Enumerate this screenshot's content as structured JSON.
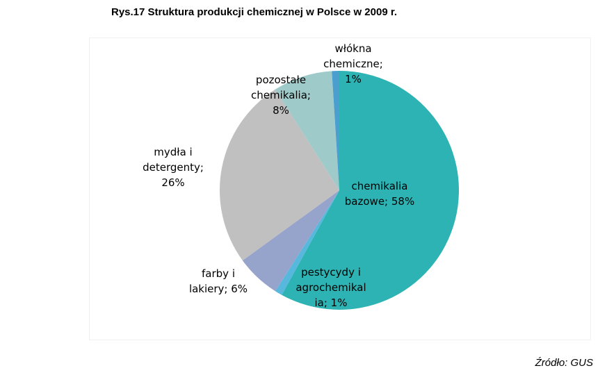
{
  "title": "Rys.17 Struktura produkcji chemicznej w Polsce w 2009 r.",
  "source": "Źródło: GUS",
  "chart_data": {
    "type": "pie",
    "title": "Rys.17 Struktura produkcji chemicznej w Polsce w 2009 r.",
    "slices": [
      {
        "name": "chemikalia bazowe",
        "value": 58,
        "color": "#2db3b3",
        "label_lines": [
          "chemikalia",
          "bazowe; 58%"
        ]
      },
      {
        "name": "pestycydy i agrochemikalia",
        "value": 1,
        "color": "#58b7dd",
        "label_lines": [
          "pestycydy i",
          "agrochemikal",
          "ia; 1%"
        ]
      },
      {
        "name": "farby i lakiery",
        "value": 6,
        "color": "#96a3cb",
        "label_lines": [
          "farby i",
          "lakiery; 6%"
        ]
      },
      {
        "name": "mydła i detergenty",
        "value": 26,
        "color": "#c0c0c0",
        "label_lines": [
          "mydła i",
          "detergenty;",
          "26%"
        ]
      },
      {
        "name": "pozostałe chemikalia",
        "value": 8,
        "color": "#9ecaca",
        "label_lines": [
          "pozostałe",
          "chemikalia;",
          "8%"
        ]
      },
      {
        "name": "włókna chemiczne",
        "value": 1,
        "color": "#4a9fcf",
        "label_lines": [
          "włókna",
          "chemiczne;",
          "1%"
        ]
      }
    ]
  }
}
